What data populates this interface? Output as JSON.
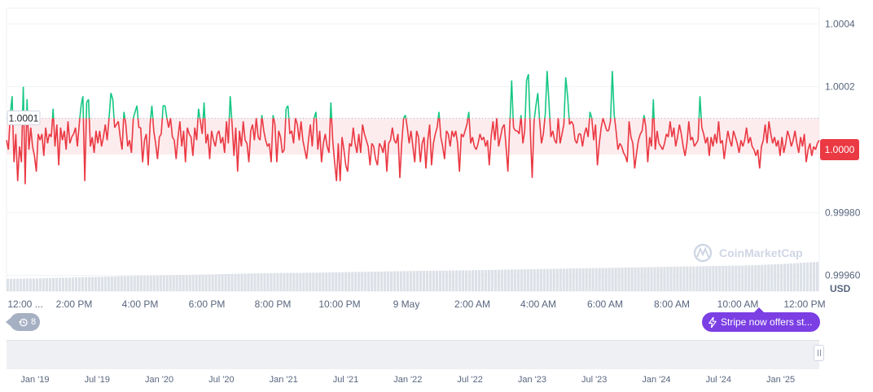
{
  "chart_data": {
    "type": "line",
    "title": "",
    "currency_label": "USD",
    "ylim": [
      0.99955,
      1.00045
    ],
    "y_ticks": [
      "1.0004",
      "1.0002",
      "1.0000",
      "0.99980",
      "0.99960"
    ],
    "y_tick_values": [
      1.0004,
      1.0002,
      1.0,
      0.9998,
      0.9996
    ],
    "baseline_value": 1.0001,
    "baseline_label": "1.0001",
    "current_price_value": 1.0,
    "current_price_label": "1.0000",
    "x_ticks": [
      "12:00 ...",
      "2:00 PM",
      "4:00 PM",
      "6:00 PM",
      "8:00 PM",
      "10:00 PM",
      "9 May",
      "2:00 AM",
      "4:00 AM",
      "6:00 AM",
      "8:00 AM",
      "10:00 AM",
      "12:00 PM"
    ],
    "values": [
      1.00003,
      1.0,
      1.00011,
      1.00017,
      0.99996,
      1.00005,
      0.9999,
      1.00001,
      0.99996,
      1.0002,
      0.99989,
      1.00016,
      1.0,
      1.00007,
      1.00001,
      0.99998,
      0.99993,
      1.00005,
      1.00003,
      1.00005,
      0.99998,
      1.00007,
      1.00002,
      1.00005,
      1.00004,
      1.00013,
      1.00001,
      1.00008,
      0.99995,
      1.00007,
      1.00003,
      1.00006,
      1.0,
      1.00009,
      1.00002,
      1.00004,
      1.00005,
      1.00007,
      1.00001,
      1.00008,
      1.00014,
      1.00017,
      0.9999,
      1.00015,
      1.00016,
      1.00001,
      1.00004,
      0.99999,
      1.00006,
      1.00002,
      1.00006,
      1.00001,
      1.00004,
      1.00008,
      1.00003,
      1.0001,
      1.00018,
      1.00016,
      1.00007,
      1.00008,
      1.00009,
      1.00004,
      1.0,
      1.00012,
      1.00008,
      1.00001,
      1.00003,
      0.99999,
      1.0001,
      1.00012,
      1.00014,
      1.00007,
      1.00007,
      0.99996,
      1.00003,
      1.00005,
      0.99995,
      1.00008,
      1.00014,
      1.00006,
      1.00002,
      0.99997,
      1.00004,
      1.00005,
      1.00014,
      1.00014,
      1.0001,
      1.00007,
      1.0001,
      1.00004,
      1.00003,
      0.99997,
      1.00004,
      1.00009,
      1.00001,
      1.00006,
      0.99996,
      1.00007,
      1.00005,
      1.00004,
      0.99998,
      1.00007,
      1.00003,
      1.00013,
      1.00009,
      1.00005,
      1.00015,
      1.00002,
      1.00005,
      0.99997,
      1.00006,
      1.00003,
      1.00001,
      1.00005,
      1.00006,
      1.00002,
      1.00004,
      0.99999,
      1.00009,
      1.00002,
      1.00017,
      1.00008,
      0.99998,
      1.00007,
      0.99993,
      1.00006,
      1.00001,
      1.00009,
      1.00003,
      1.00002,
      0.99996,
      1.00006,
      1.00008,
      1.00003,
      1.0001,
      1.00004,
      1.00003,
      1.00011,
      1.00006,
      1.00003,
      1.00001,
      1.00002,
      0.99996,
      1.00011,
      1.00008,
      0.99996,
      1.00006,
      1.00004,
      0.99999,
      1.0,
      1.00013,
      1.00014,
      1.00005,
      1.00006,
      1.00002,
      1.0001,
      1.00008,
      1.00003,
      1.00009,
      1.00003,
      1.0,
      0.99997,
      1.00003,
      1.00008,
      1.00001,
      1.0001,
      1.00012,
      1.0,
      1.00006,
      0.99996,
      1.00002,
      1.00005,
      1.00001,
      0.99999,
      1.00015,
      1.00003,
      0.99996,
      0.9999,
      1.00002,
      0.9999,
      1.00004,
      1.0,
      0.99995,
      0.99993,
      1.00002,
      1.00001,
      1.00007,
      1.00002,
      0.99999,
      1.00005,
      0.99999,
      1.00008,
      1.00005,
      1.00003,
      1.00001,
      0.99995,
      1.00002,
      1.00001,
      0.99997,
      0.99995,
      1.00002,
      1.00001,
      0.99999,
      1.00003,
      0.99993,
      1.00002,
      1.00003,
      1.00007,
      1.00003,
      1.00002,
      1.00005,
      0.99991,
      1.00002,
      1.0001,
      1.00011,
      1.00007,
      1.00002,
      1.00006,
      1.00001,
      0.99996,
      1.00006,
      1.00004,
      0.99996,
      1.00002,
      1.00004,
      0.99994,
      1.00003,
      1.00008,
      0.99995,
      1.00002,
      1.00005,
      1.00007,
      1.00012,
      1.00004,
      1.00001,
      0.99997,
      1.00006,
      1.00005,
      1.00001,
      1.00006,
      1.00004,
      1.00006,
      1.00002,
      0.99993,
      1.00005,
      1.00004,
      1.00006,
      1.00008,
      1.00012,
      1.00002,
      1.00004,
      1.00001,
      1.0,
      1.00002,
      1.00005,
      1.00003,
      1.00004,
      1.00001,
      1.00003,
      0.99995,
      1.00004,
      1.00009,
      1.00003,
      1.0001,
      1.00001,
      1.00004,
      1.00007,
      1.00008,
      1.00001,
      0.99993,
      1.00008,
      1.00022,
      1.00007,
      1.00006,
      1.00006,
      1.00005,
      1.00011,
      1.00002,
      1.00006,
      1.00022,
      1.00024,
      1.00006,
      0.99991,
      1.00009,
      1.00014,
      1.00018,
      1.00009,
      1.00002,
      1.00005,
      1.00011,
      1.00025,
      1.00015,
      1.00004,
      1.00006,
      1.00003,
      1.00002,
      1.0001,
      1.00002,
      1.00005,
      1.00008,
      1.00023,
      1.00017,
      1.00008,
      1.00009,
      1.00008,
      1.00003,
      1.00002,
      1.00005,
      1.00005,
      1.00001,
      1.00005,
      1.00007,
      1.00004,
      1.00012,
      1.0001,
      1.00003,
      1.00008,
      0.99995,
      1.00002,
      1.00007,
      1.0001,
      1.00008,
      1.00006,
      1.00006,
      1.00009,
      1.00025,
      1.00011,
      1.00006,
      1.0,
      1.00002,
      1.00001,
      0.99999,
      0.99998,
      0.99996,
      1.00009,
      1.00004,
      1.00002,
      0.99994,
      0.99999,
      1.00003,
      1.00005,
      1.00006,
      1.00011,
      1.00007,
      0.99996,
      1.00004,
      1.00001,
      1.00016,
      1.0,
      1.00006,
      1.00002,
      1.00001,
      1.0,
      1.00002,
      1.00005,
      1.00004,
      1.00009,
      1.00004,
      1.00007,
      1.00001,
      1.00004,
      1.00008,
      1.00005,
      1.00001,
      0.99998,
      1.00002,
      1.00009,
      1.00003,
      1.00004,
      1.00001,
      1.00002,
      1.00003,
      1.00017,
      1.00007,
      1.00005,
      1.00002,
      1.00004,
      0.99998,
      1.00004,
      1.00001,
      1.00005,
      1.00002,
      1.00009,
      1.00002,
      1.00003,
      0.99997,
      1.00002,
      1.00006,
      1.00003,
      1.00001,
      1.00006,
      1.00004,
      1.00002,
      0.99999,
      1.00003,
      1.00001,
      1.00003,
      1.00007,
      1.00002,
      1.00004,
      1.00001,
      1.0,
      0.99998,
      1.0,
      0.99994,
      1.00001,
      1.00003,
      1.00008,
      1.00002,
      1.00009,
      1.00005,
      1.00002,
      1.00004,
      1.00001,
      1.00003,
      0.99998,
      1.00004,
      0.99999,
      1.00002,
      1.00006,
      1.00004,
      1.00001,
      1.00003,
      1.00006,
      1.00002,
      0.99999,
      1.00004,
      1.00001,
      1.00005,
      0.99996,
      1.0,
      1.00002,
      0.99998,
      1.00001,
      1.0,
      1.00002,
      1.00003
    ],
    "volume_values": [
      0.42,
      0.44,
      0.47,
      0.5,
      0.53,
      0.55,
      0.57,
      0.6,
      0.62,
      0.63,
      0.65,
      0.67,
      0.69,
      0.7,
      0.72,
      0.74,
      0.76,
      0.78,
      0.8,
      0.82,
      0.84,
      0.86,
      0.88,
      0.93,
      1.0
    ],
    "logo_text": "CoinMarketCap",
    "range_labels": [
      "Jan '19",
      "Jul '19",
      "Jan '20",
      "Jul '20",
      "Jan '21",
      "Jul '21",
      "Jan '22",
      "Jul '22",
      "Jan '23",
      "Jul '23",
      "Jan '24",
      "Jul '24",
      "Jan '25"
    ],
    "colors": {
      "up": "#16c784",
      "down": "#ea3943",
      "fill": "#fdecee",
      "grid": "#eff2f5",
      "axis_text": "#58667e",
      "volume": "#dde1e7",
      "logo": "#cfd6e4"
    }
  },
  "history_button": {
    "count": "8"
  },
  "promo": {
    "label": "Stripe now offers st..."
  }
}
